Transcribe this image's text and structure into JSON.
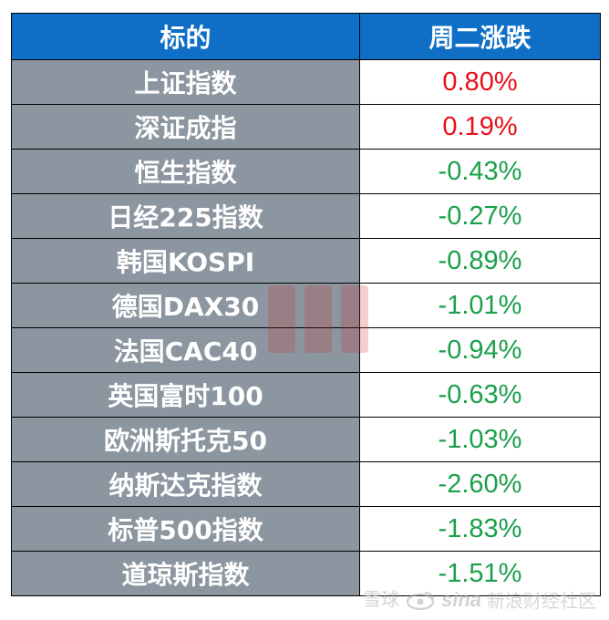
{
  "table": {
    "headers": [
      "标的",
      "周二涨跌"
    ],
    "rows": [
      {
        "name": "上证指数",
        "change": "0.80%",
        "direction": "up"
      },
      {
        "name": "深证成指",
        "change": "0.19%",
        "direction": "up"
      },
      {
        "name": "恒生指数",
        "change": "-0.43%",
        "direction": "down"
      },
      {
        "name": "日经225指数",
        "change": "-0.27%",
        "direction": "down"
      },
      {
        "name": "韩国KOSPI",
        "change": "-0.89%",
        "direction": "down"
      },
      {
        "name": "德国DAX30",
        "change": "-1.01%",
        "direction": "down"
      },
      {
        "name": "法国CAC40",
        "change": "-0.94%",
        "direction": "down"
      },
      {
        "name": "英国富时100",
        "change": "-0.63%",
        "direction": "down"
      },
      {
        "name": "欧洲斯托克50",
        "change": "-1.03%",
        "direction": "down"
      },
      {
        "name": "纳斯达克指数",
        "change": "-2.60%",
        "direction": "down"
      },
      {
        "name": "标普500指数",
        "change": "-1.83%",
        "direction": "down"
      },
      {
        "name": "道琼斯指数",
        "change": "-1.51%",
        "direction": "down"
      }
    ]
  },
  "colors": {
    "header_bg": "#0f6fc6",
    "name_bg": "#8c96a0",
    "up": "#e8101a",
    "down": "#1aa04a"
  },
  "watermarks": {
    "center": "财联社",
    "left": "雪球",
    "sina_logo": "sina",
    "sina_text": "新浪财经社区"
  }
}
